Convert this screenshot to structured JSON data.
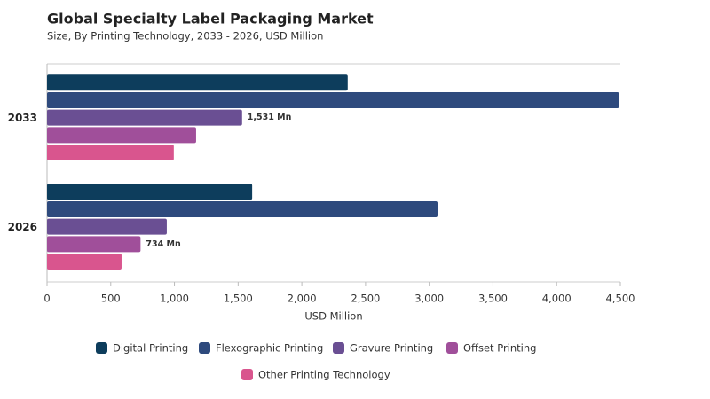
{
  "chart_data": {
    "type": "bar",
    "orientation": "horizontal",
    "title": "Global Specialty Label Packaging Market",
    "subtitle": "Size, By Printing Technology, 2033 - 2026, USD Million",
    "x_label": "USD Million",
    "categories": [
      "2033",
      "2026"
    ],
    "series": [
      {
        "name": "Digital Printing",
        "color": "#0d3d5c",
        "values": [
          2360,
          1610
        ]
      },
      {
        "name": "Flexographic Printing",
        "color": "#2e4a7d",
        "values": [
          4490,
          3065
        ]
      },
      {
        "name": "Gravure Printing",
        "color": "#6a4f93",
        "values": [
          1531,
          940
        ],
        "value_labels": [
          "1,531 Mn",
          null
        ]
      },
      {
        "name": "Offset Printing",
        "color": "#a04f9a",
        "values": [
          1170,
          734
        ],
        "value_labels": [
          null,
          "734 Mn"
        ]
      },
      {
        "name": "Other Printing Technology",
        "color": "#d9558e",
        "values": [
          995,
          585
        ]
      }
    ],
    "xlim": [
      0,
      4500
    ],
    "xticks": [
      0,
      500,
      {
        "value": 1000,
        "label": "1,000"
      },
      {
        "value": 1500,
        "label": "1,500"
      },
      {
        "value": 2000,
        "label": "2,000"
      },
      {
        "value": 2500,
        "label": "2,500"
      },
      {
        "value": 3000,
        "label": "3,000"
      },
      {
        "value": 3500,
        "label": "3,500"
      },
      {
        "value": 4000,
        "label": "4,000"
      },
      {
        "value": 4500,
        "label": "4,500"
      }
    ],
    "legend": "bottom"
  }
}
